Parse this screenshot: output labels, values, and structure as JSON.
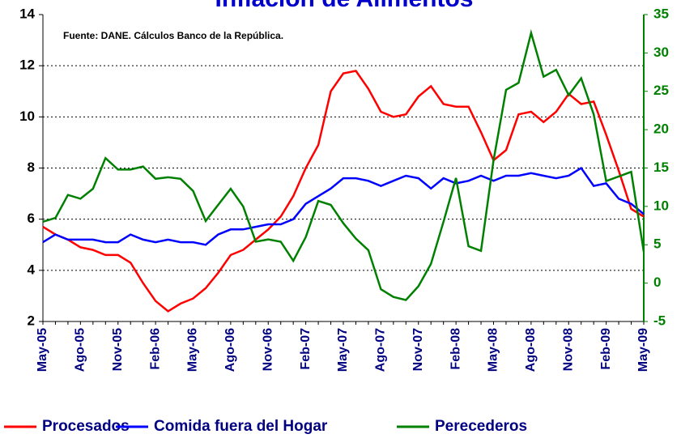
{
  "chart_data": {
    "type": "line",
    "title": "Inflación de Alimentos",
    "annotation": "Fuente: DANE. Cálculos Banco de la República.",
    "categories": [
      "May-05",
      null,
      null,
      "Ago-05",
      null,
      null,
      "Nov-05",
      null,
      null,
      "Feb-06",
      null,
      null,
      "May-06",
      null,
      null,
      "Ago-06",
      null,
      null,
      "Nov-06",
      null,
      null,
      "Feb-07",
      null,
      null,
      "May-07",
      null,
      null,
      "Ago-07",
      null,
      null,
      "Nov-07",
      null,
      null,
      "Feb-08",
      null,
      null,
      "May-08",
      null,
      null,
      "Ago-08",
      null,
      null,
      "Nov-08",
      null,
      null,
      "Feb-09",
      null,
      null,
      "May-09"
    ],
    "series": [
      {
        "name": "Procesados",
        "color": "#ff0000",
        "axis": "y",
        "values": [
          5.7,
          5.4,
          5.2,
          4.9,
          4.8,
          4.6,
          4.6,
          4.3,
          3.5,
          2.8,
          2.4,
          2.7,
          2.9,
          3.3,
          3.9,
          4.6,
          4.8,
          5.2,
          5.6,
          6.1,
          6.9,
          8.0,
          8.9,
          11.0,
          11.7,
          11.8,
          11.1,
          10.2,
          10.0,
          10.1,
          10.8,
          11.2,
          10.5,
          10.4,
          10.4,
          9.4,
          8.3,
          8.7,
          10.1,
          10.2,
          9.8,
          10.2,
          10.9,
          10.5,
          10.6,
          9.3,
          7.9,
          6.4,
          6.1
        ]
      },
      {
        "name": "Comida fuera del Hogar",
        "color": "#0000ff",
        "axis": "y",
        "values": [
          5.1,
          5.4,
          5.2,
          5.2,
          5.2,
          5.1,
          5.1,
          5.4,
          5.2,
          5.1,
          5.2,
          5.1,
          5.1,
          5.0,
          5.4,
          5.6,
          5.6,
          5.7,
          5.8,
          5.8,
          6.0,
          6.6,
          6.9,
          7.2,
          7.6,
          7.6,
          7.5,
          7.3,
          7.5,
          7.7,
          7.6,
          7.2,
          7.6,
          7.4,
          7.5,
          7.7,
          7.5,
          7.7,
          7.7,
          7.8,
          7.7,
          7.6,
          7.7,
          8.0,
          7.3,
          7.4,
          6.8,
          6.6,
          6.2
        ]
      },
      {
        "name": "Perecederos",
        "color": "#008000",
        "axis": "y2",
        "values": [
          8,
          8.5,
          11.5,
          11,
          12.3,
          16.3,
          14.8,
          14.8,
          15.2,
          13.6,
          13.8,
          13.6,
          12,
          8.1,
          10.2,
          12.3,
          10,
          5.4,
          5.7,
          5.4,
          2.9,
          6,
          10.7,
          10.2,
          7.8,
          5.8,
          4.3,
          -0.8,
          -1.8,
          -2.2,
          -0.4,
          2.5,
          8,
          13.7,
          4.8,
          4.2,
          16,
          25.2,
          26.1,
          32.6,
          26.9,
          27.8,
          24.5,
          26.7,
          22,
          13.3,
          13.9,
          14.5,
          4.1
        ]
      }
    ],
    "ylim": [
      2,
      14
    ],
    "yticks": [
      2,
      4,
      6,
      8,
      10,
      12,
      14
    ],
    "y2lim": [
      -5,
      35
    ],
    "y2ticks": [
      -5,
      0,
      5,
      10,
      15,
      20,
      25,
      30,
      35
    ],
    "grid": true
  }
}
